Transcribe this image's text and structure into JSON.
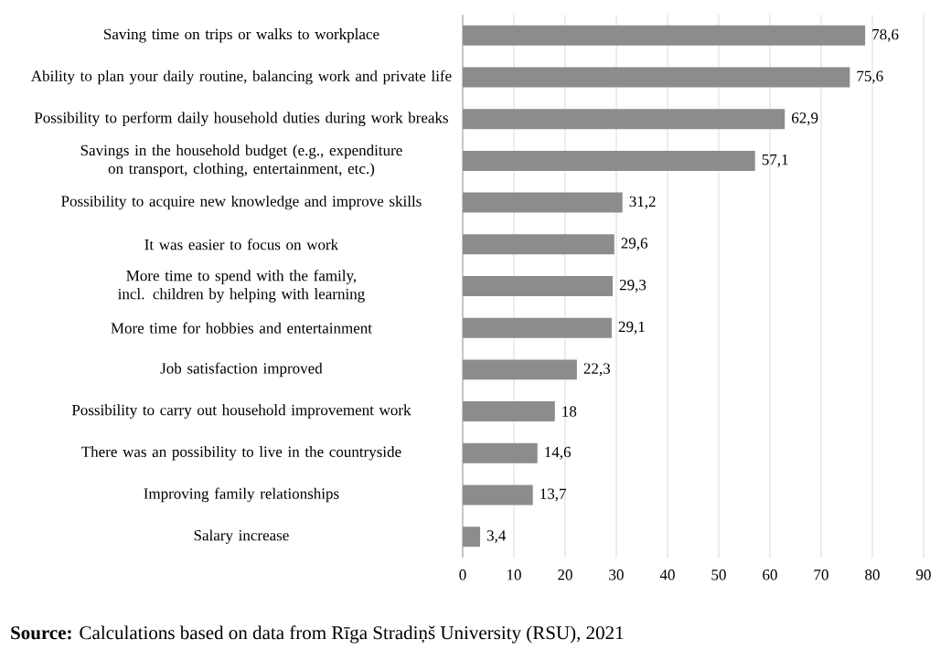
{
  "chart_data": {
    "type": "bar",
    "orientation": "horizontal",
    "categories": [
      "Saving time on trips or walks to workplace",
      "Ability to plan your daily routine, balancing work and private life",
      "Possibility to perform daily household duties during work breaks",
      "Savings in the household budget (e.g., expenditure on transport, clothing, entertainment, etc.)",
      "Possibility to acquire new knowledge and improve skills",
      "It was easier to focus on work",
      "More time to spend with the family, incl. children by helping with learning",
      "More time for hobbies and entertainment",
      "Job satisfaction improved",
      "Possibility to carry out household improvement work",
      "There was an possibility to live in the countryside",
      "Improving family relationships",
      "Salary increase"
    ],
    "values": [
      78.6,
      75.6,
      62.9,
      57.1,
      31.2,
      29.6,
      29.3,
      29.1,
      22.3,
      18,
      14.6,
      13.7,
      3.4
    ],
    "value_labels": [
      "78,6",
      "75,6",
      "62,9",
      "57,1",
      "31,2",
      "29,6",
      "29,3",
      "29,1",
      "22,3",
      "18",
      "14,6",
      "13,7",
      "3,4"
    ],
    "color": "#8c8c8c",
    "xlim": [
      0,
      90
    ],
    "xticks": [
      0,
      10,
      20,
      30,
      40,
      50,
      60,
      70,
      80,
      90
    ],
    "grid": "x",
    "annotations": [
      "**Source:** Calculations based on data from Rīga Stradiņš University (RSU), 2021"
    ]
  }
}
